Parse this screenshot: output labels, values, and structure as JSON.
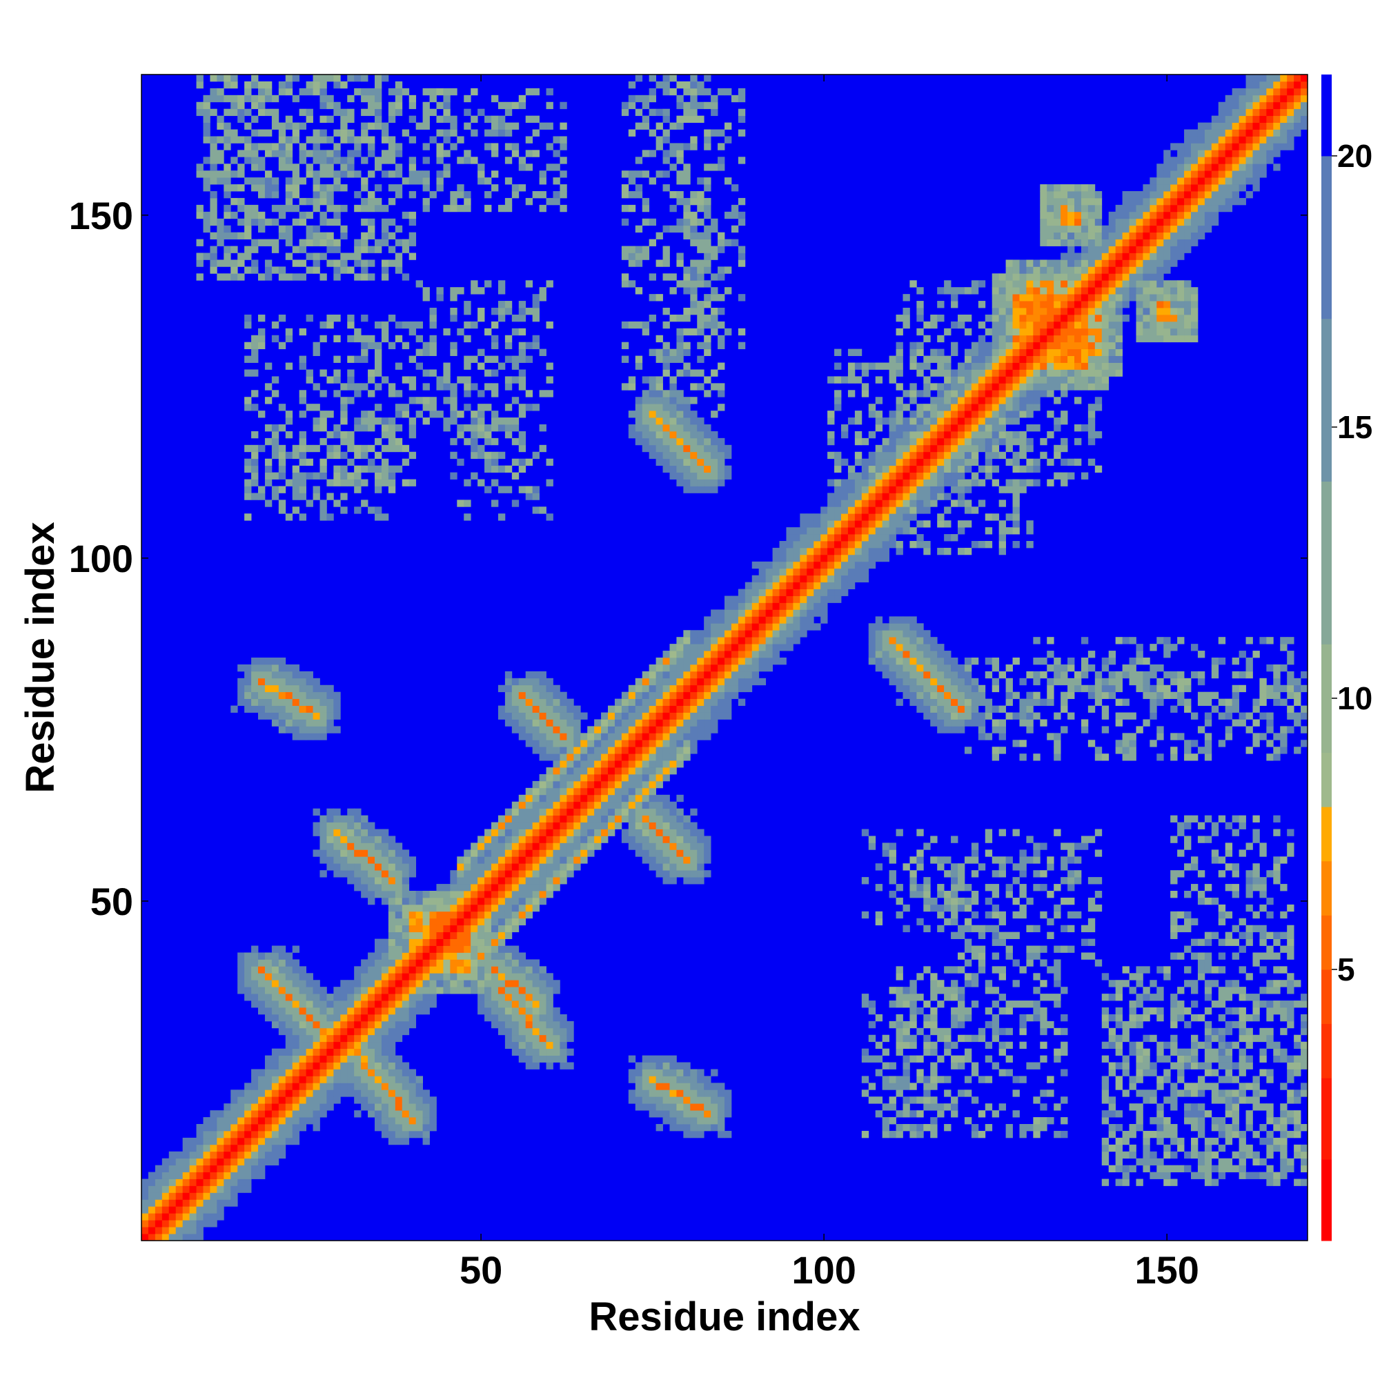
{
  "chart_data": {
    "type": "heatmap",
    "title": "",
    "xlabel": "Residue index",
    "ylabel": "Residue index",
    "n_residues": 170,
    "xlim": [
      0.5,
      170.5
    ],
    "ylim": [
      0.5,
      170.5
    ],
    "x_ticks": [
      {
        "value": 50,
        "label": "50"
      },
      {
        "value": 100,
        "label": "100"
      },
      {
        "value": 150,
        "label": "150"
      }
    ],
    "y_ticks": [
      {
        "value": 50,
        "label": "50"
      },
      {
        "value": 100,
        "label": "100"
      },
      {
        "value": 150,
        "label": "150"
      }
    ],
    "colorbar": {
      "range": [
        0,
        21.5
      ],
      "ticks": [
        {
          "value": 5,
          "label": "5"
        },
        {
          "value": 10,
          "label": "10"
        },
        {
          "value": 15,
          "label": "15"
        },
        {
          "value": 20,
          "label": "20"
        }
      ],
      "levels": [
        {
          "max": 1.5,
          "color": "#ff0000"
        },
        {
          "max": 3.0,
          "color": "#ff1a00"
        },
        {
          "max": 4.0,
          "color": "#ff3300"
        },
        {
          "max": 5.0,
          "color": "#ff4d00"
        },
        {
          "max": 6.0,
          "color": "#ff6a00"
        },
        {
          "max": 7.0,
          "color": "#ff8800"
        },
        {
          "max": 8.0,
          "color": "#ffaa00"
        },
        {
          "max": 9.0,
          "color": "#9fb98c"
        },
        {
          "max": 11.0,
          "color": "#97b48f"
        },
        {
          "max": 14.0,
          "color": "#86a898"
        },
        {
          "max": 17.0,
          "color": "#6e93a8"
        },
        {
          "max": 20.0,
          "color": "#5a7cb7"
        },
        {
          "max": 21.5,
          "color": "#0000f5"
        }
      ]
    },
    "background_color": "#0000f5",
    "contact_features": [
      {
        "kind": "diagonal",
        "width": 1.0
      },
      {
        "kind": "parallel",
        "i_range": [
          89,
          97
        ],
        "j_range": [
          89,
          97
        ],
        "offset": 3
      },
      {
        "kind": "parallel",
        "i_range": [
          47,
          80
        ],
        "j_range": [
          47,
          80
        ],
        "offset": 8
      },
      {
        "kind": "antiparallel",
        "i_range": [
          18,
          30
        ],
        "j_range": [
          28,
          40
        ],
        "comment": "strand pair"
      },
      {
        "kind": "antiparallel",
        "i_range": [
          30,
          40
        ],
        "j_range": [
          18,
          30
        ]
      },
      {
        "kind": "antiparallel",
        "i_range": [
          75,
          83
        ],
        "j_range": [
          113,
          121
        ]
      },
      {
        "kind": "antiparallel",
        "i_range": [
          110,
          120
        ],
        "j_range": [
          78,
          88
        ]
      },
      {
        "kind": "antiparallel",
        "i_range": [
          29,
          37
        ],
        "j_range": [
          53,
          60
        ]
      },
      {
        "kind": "antiparallel",
        "i_range": [
          53,
          60
        ],
        "j_range": [
          29,
          37
        ]
      },
      {
        "kind": "antiparallel",
        "i_range": [
          56,
          62
        ],
        "j_range": [
          74,
          80
        ]
      },
      {
        "kind": "antiparallel",
        "i_range": [
          74,
          80
        ],
        "j_range": [
          56,
          62
        ]
      },
      {
        "kind": "antiparallel",
        "i_range": [
          18,
          26
        ],
        "j_range": [
          77,
          82
        ]
      },
      {
        "kind": "antiparallel",
        "i_range": [
          52,
          58
        ],
        "j_range": [
          35,
          40
        ]
      },
      {
        "kind": "antiparallel",
        "i_range": [
          75,
          83
        ],
        "j_range": [
          19,
          24
        ]
      },
      {
        "kind": "patch",
        "i_range": [
          130,
          138
        ],
        "j_range": [
          128,
          140
        ]
      },
      {
        "kind": "patch",
        "i_range": [
          135,
          137
        ],
        "j_range": [
          149,
          150
        ]
      },
      {
        "kind": "patch",
        "i_range": [
          149,
          151
        ],
        "j_range": [
          135,
          136
        ]
      },
      {
        "kind": "patch",
        "i_range": [
          42,
          48
        ],
        "j_range": [
          40,
          46
        ]
      }
    ]
  }
}
